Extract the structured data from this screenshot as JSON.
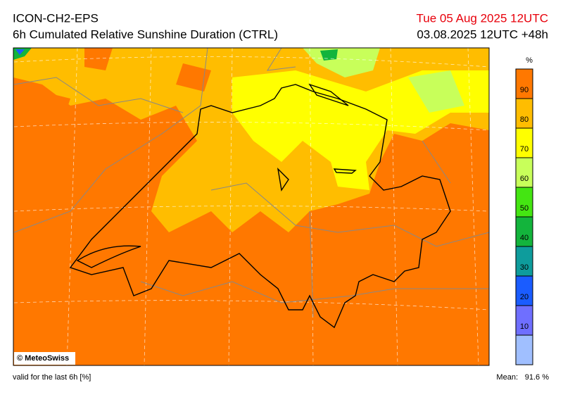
{
  "header": {
    "model": "ICON-CH2-EPS",
    "title": "6h Cumulated Relative Sunshine Duration (CTRL)",
    "valid_time": "Tue 05 Aug 2025 12UTC",
    "run": "03.08.2025 12UTC +48h"
  },
  "colorbar": {
    "unit": "%",
    "lim": [
      0,
      100
    ],
    "ticks": [
      10,
      20,
      30,
      40,
      50,
      60,
      70,
      80,
      90
    ],
    "colors": [
      "#a0bfff",
      "#6f6fff",
      "#1a5cff",
      "#0e9c9c",
      "#13b43c",
      "#44e512",
      "#c8ff5a",
      "#ffff00",
      "#ffbd00",
      "#ff7800"
    ]
  },
  "credit": "© MeteoSwiss",
  "footer": {
    "validity": "valid for the last 6h [%]",
    "mean_label": "Mean:",
    "mean_value": "91.6 %"
  }
}
